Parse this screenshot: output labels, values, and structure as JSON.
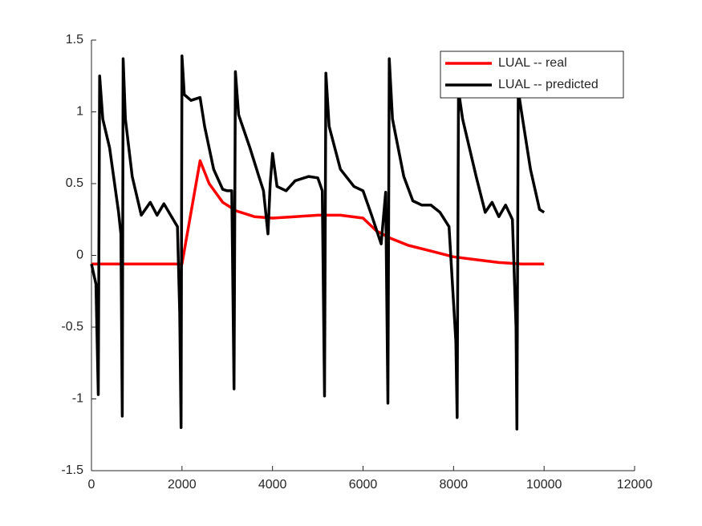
{
  "chart_data": {
    "type": "line",
    "xlim": [
      0,
      12000
    ],
    "xticks": [
      0,
      2000,
      4000,
      6000,
      8000,
      10000,
      12000
    ],
    "ylim": [
      -1.5,
      1.5
    ],
    "yticks": [
      -1.5,
      -1,
      -0.5,
      0,
      0.5,
      1,
      1.5
    ],
    "grid": false,
    "legend": "upper-right",
    "series": [
      {
        "name": "LUAL -- real",
        "color": "#ff0000",
        "x": [
          0,
          2000,
          2400,
          2600,
          2900,
          3200,
          3600,
          4000,
          4500,
          5000,
          5500,
          6000,
          6300,
          6600,
          7000,
          7500,
          8000,
          8500,
          9000,
          9500,
          10000
        ],
        "values": [
          -0.06,
          -0.06,
          0.66,
          0.5,
          0.37,
          0.31,
          0.27,
          0.26,
          0.27,
          0.28,
          0.28,
          0.26,
          0.17,
          0.12,
          0.07,
          0.03,
          -0.01,
          -0.03,
          -0.05,
          -0.06,
          -0.06
        ]
      },
      {
        "name": "LUAL -- predicted",
        "color": "#000000",
        "x": [
          0,
          100,
          150,
          180,
          250,
          400,
          600,
          650,
          680,
          700,
          750,
          900,
          1100,
          1300,
          1450,
          1600,
          1750,
          1900,
          1950,
          1980,
          2000,
          2050,
          2200,
          2400,
          2500,
          2700,
          2900,
          3000,
          3100,
          3150,
          3180,
          3250,
          3500,
          3700,
          3800,
          3900,
          3950,
          4000,
          4100,
          4300,
          4500,
          4800,
          5000,
          5100,
          5150,
          5180,
          5250,
          5500,
          5800,
          6000,
          6200,
          6400,
          6500,
          6550,
          6580,
          6650,
          6900,
          7100,
          7300,
          7500,
          7700,
          7900,
          8050,
          8080,
          8110,
          8200,
          8500,
          8700,
          8850,
          9000,
          9150,
          9300,
          9380,
          9400,
          9430,
          9500,
          9700,
          9900,
          10000
        ],
        "values": [
          -0.06,
          -0.2,
          -0.97,
          1.25,
          0.95,
          0.75,
          0.3,
          0.15,
          -1.12,
          1.37,
          0.95,
          0.55,
          0.28,
          0.37,
          0.28,
          0.36,
          0.28,
          0.2,
          -0.4,
          -1.2,
          1.39,
          1.12,
          1.08,
          1.1,
          0.9,
          0.6,
          0.46,
          0.45,
          0.45,
          -0.93,
          1.28,
          0.98,
          0.75,
          0.55,
          0.45,
          0.15,
          0.5,
          0.71,
          0.48,
          0.45,
          0.52,
          0.55,
          0.54,
          0.45,
          -0.98,
          1.27,
          0.9,
          0.6,
          0.48,
          0.45,
          0.27,
          0.08,
          0.44,
          -1.03,
          1.37,
          0.95,
          0.55,
          0.38,
          0.35,
          0.35,
          0.3,
          0.2,
          -0.6,
          -1.13,
          1.15,
          0.95,
          0.55,
          0.3,
          0.37,
          0.27,
          0.35,
          0.25,
          -0.5,
          -1.21,
          1.15,
          1.0,
          0.6,
          0.32,
          0.3
        ]
      }
    ]
  }
}
